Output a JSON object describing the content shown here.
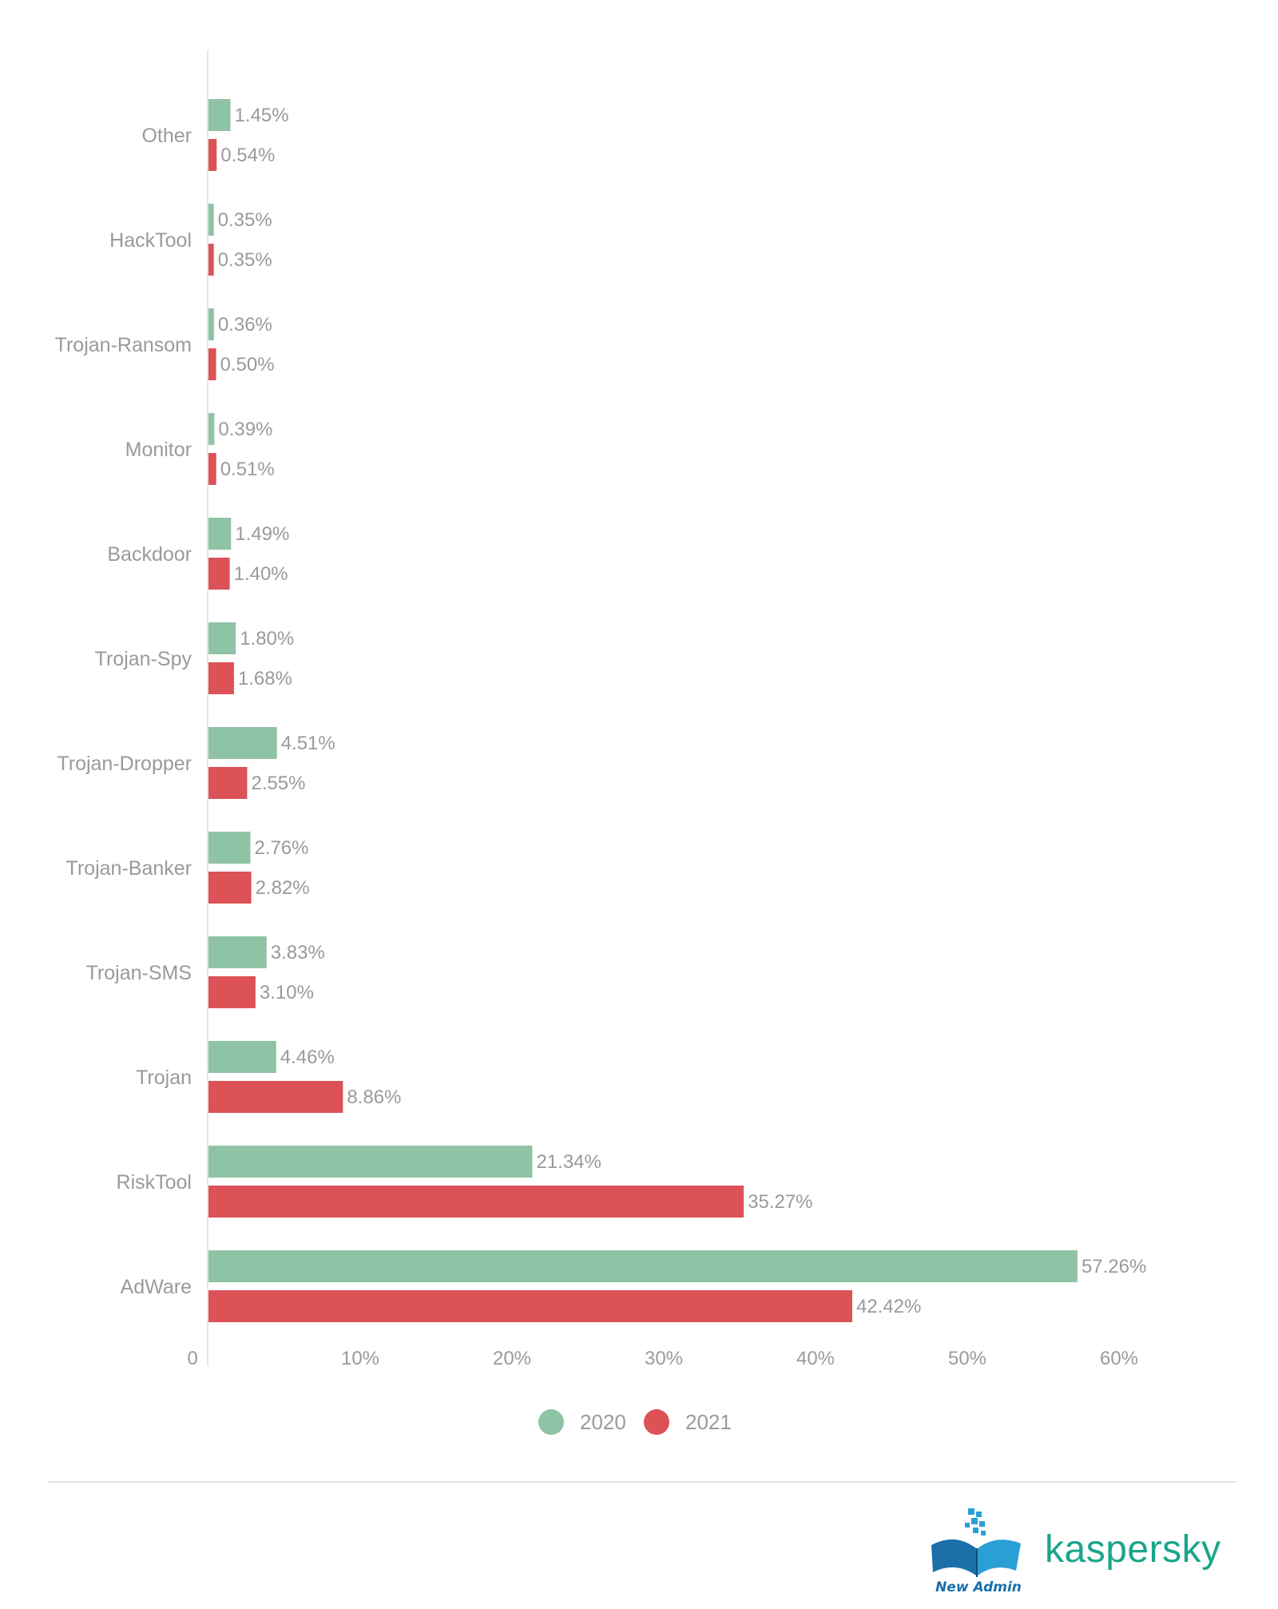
{
  "chart_data": {
    "type": "bar",
    "orientation": "horizontal",
    "categories": [
      "Other",
      "HackTool",
      "Trojan-Ransom",
      "Monitor",
      "Backdoor",
      "Trojan-Spy",
      "Trojan-Dropper",
      "Trojan-Banker",
      "Trojan-SMS",
      "Trojan",
      "RiskTool",
      "AdWare"
    ],
    "series": [
      {
        "name": "2020",
        "color": "#8fc3a5",
        "values": [
          1.45,
          0.35,
          0.36,
          0.39,
          1.49,
          1.8,
          4.51,
          2.76,
          3.83,
          4.46,
          21.34,
          57.26
        ],
        "labels": [
          "1.45%",
          "0.35%",
          "0.36%",
          "0.39%",
          "1.49%",
          "1.80%",
          "4.51%",
          "2.76%",
          "3.83%",
          "4.46%",
          "21.34%",
          "57.26%"
        ]
      },
      {
        "name": "2021",
        "color": "#dc5257",
        "values": [
          0.54,
          0.35,
          0.5,
          0.51,
          1.4,
          1.68,
          2.55,
          2.82,
          3.1,
          8.86,
          35.27,
          42.42
        ],
        "labels": [
          "0.54%",
          "0.35%",
          "0.50%",
          "0.51%",
          "1.40%",
          "1.68%",
          "2.55%",
          "2.82%",
          "3.10%",
          "8.86%",
          "35.27%",
          "42.42%"
        ]
      }
    ],
    "xlim": [
      0,
      60
    ],
    "xticks": [
      0,
      10,
      20,
      30,
      40,
      50,
      60
    ],
    "xtick_labels": [
      "0",
      "10%",
      "20%",
      "30%",
      "40%",
      "50%",
      "60%"
    ],
    "legend_position": "bottom-center",
    "grid": false,
    "title": "",
    "xlabel": "",
    "ylabel": ""
  },
  "branding": {
    "newadmin_text": "New Admin",
    "kaspersky_text": "kaspersky",
    "kaspersky_color": "#1aa58a",
    "newadmin_color": "#1a6fa8"
  }
}
